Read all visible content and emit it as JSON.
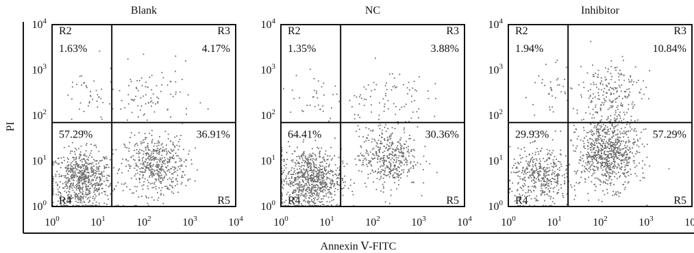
{
  "chart_data": [
    {
      "type": "scatter",
      "title": "Blank",
      "xlim": [
        1,
        10000
      ],
      "ylim": [
        1,
        10000
      ],
      "xscale": "log",
      "yscale": "log",
      "gates": {
        "x": 20,
        "y": 70
      },
      "regions": [
        {
          "name": "R2",
          "label": "1.63%"
        },
        {
          "name": "R3",
          "label": "4.17%"
        },
        {
          "name": "R4",
          "label": "57.29%"
        },
        {
          "name": "R5",
          "label": "36.91%"
        }
      ],
      "clusters": [
        {
          "x": 4.5,
          "y": 3.8,
          "spread_x": 0.33,
          "spread_y": 0.33,
          "count": 700
        },
        {
          "x": 180,
          "y": 8,
          "spread_x": 0.33,
          "spread_y": 0.32,
          "count": 500
        },
        {
          "x": 150,
          "y": 250,
          "spread_x": 0.45,
          "spread_y": 0.35,
          "count": 90
        },
        {
          "x": 6,
          "y": 250,
          "spread_x": 0.3,
          "spread_y": 0.35,
          "count": 40
        }
      ]
    },
    {
      "type": "scatter",
      "title": "NC",
      "xlim": [
        1,
        10000
      ],
      "ylim": [
        1,
        10000
      ],
      "xscale": "log",
      "yscale": "log",
      "gates": {
        "x": 20,
        "y": 70
      },
      "regions": [
        {
          "name": "R2",
          "label": "1.35%"
        },
        {
          "name": "R3",
          "label": "3.88%"
        },
        {
          "name": "R4",
          "label": "64.41%"
        },
        {
          "name": "R5",
          "label": "30.36%"
        }
      ],
      "clusters": [
        {
          "x": 4.5,
          "y": 4,
          "spread_x": 0.33,
          "spread_y": 0.33,
          "count": 780
        },
        {
          "x": 220,
          "y": 12,
          "spread_x": 0.32,
          "spread_y": 0.33,
          "count": 420
        },
        {
          "x": 180,
          "y": 250,
          "spread_x": 0.45,
          "spread_y": 0.35,
          "count": 85
        },
        {
          "x": 6,
          "y": 250,
          "spread_x": 0.3,
          "spread_y": 0.35,
          "count": 35
        }
      ]
    },
    {
      "type": "scatter",
      "title": "Inhibitor",
      "xlim": [
        1,
        10000
      ],
      "ylim": [
        1,
        10000
      ],
      "xscale": "log",
      "yscale": "log",
      "gates": {
        "x": 20,
        "y": 70
      },
      "regions": [
        {
          "name": "R2",
          "label": "1.94%"
        },
        {
          "name": "R3",
          "label": "10.84%"
        },
        {
          "name": "R4",
          "label": "29.93%"
        },
        {
          "name": "R5",
          "label": "57.29%"
        }
      ],
      "clusters": [
        {
          "x": 5,
          "y": 4.5,
          "spread_x": 0.33,
          "spread_y": 0.3,
          "count": 420
        },
        {
          "x": 150,
          "y": 15,
          "spread_x": 0.33,
          "spread_y": 0.38,
          "count": 800
        },
        {
          "x": 170,
          "y": 300,
          "spread_x": 0.35,
          "spread_y": 0.38,
          "count": 220
        },
        {
          "x": 8,
          "y": 300,
          "spread_x": 0.3,
          "spread_y": 0.35,
          "count": 40
        }
      ]
    }
  ],
  "axes": {
    "ylabel": "PI",
    "xlabel": "Annexin Ⅴ-FITC",
    "tick_base": "10",
    "tick_exponents": [
      "0",
      "1",
      "2",
      "3",
      "4"
    ]
  }
}
